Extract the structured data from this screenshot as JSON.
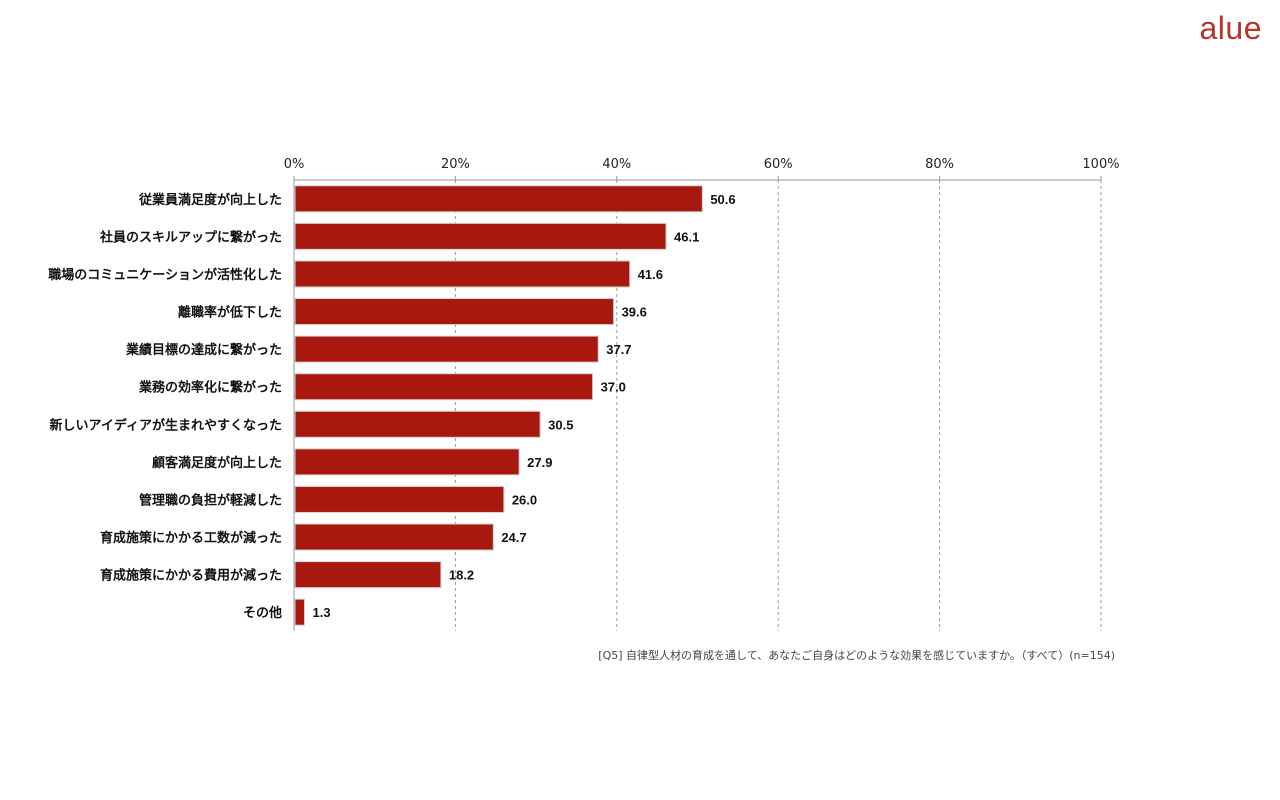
{
  "brand": {
    "logo_text": "alue",
    "color": "#b5352c"
  },
  "footnote": "[Q5] 自律型人材の育成を通して、あなたご自身はどのような効果を感じていますか。（すべて）(n=154)",
  "chart_data": {
    "type": "bar",
    "orientation": "horizontal",
    "title": "",
    "xlabel": "",
    "ylabel": "",
    "xlim": [
      0,
      100
    ],
    "ticks": [
      "0%",
      "20%",
      "40%",
      "60%",
      "80%",
      "100%"
    ],
    "grid": true,
    "bar_color": "#a8180f",
    "categories": [
      "従業員満足度が向上した",
      "社員のスキルアップに繋がった",
      "職場のコミュニケーションが活性化した",
      "離職率が低下した",
      "業績目標の達成に繋がった",
      "業務の効率化に繋がった",
      "新しいアイディアが生まれやすくなった",
      "顧客満足度が向上した",
      "管理職の負担が軽減した",
      "育成施策にかかる工数が減った",
      "育成施策にかかる費用が減った",
      "その他"
    ],
    "values": [
      50.6,
      46.1,
      41.6,
      39.6,
      37.7,
      37.0,
      30.5,
      27.9,
      26.0,
      24.7,
      18.2,
      1.3
    ],
    "value_labels": [
      "50.6",
      "46.1",
      "41.6",
      "39.6",
      "37.7",
      "37.0",
      "30.5",
      "27.9",
      "26.0",
      "24.7",
      "18.2",
      "1.3"
    ]
  }
}
